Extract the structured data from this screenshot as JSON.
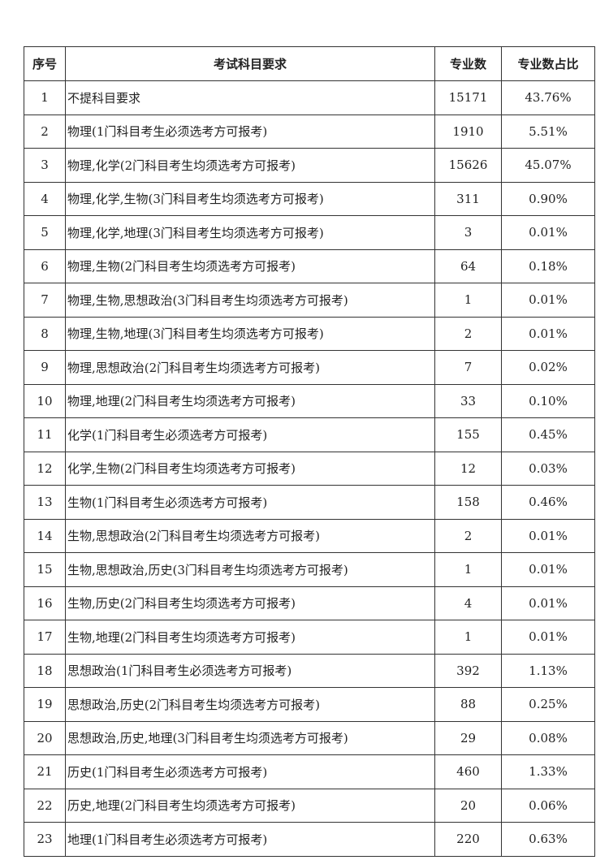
{
  "table": {
    "headers": [
      "序号",
      "考试科目要求",
      "专业数",
      "专业数占比"
    ],
    "rows": [
      [
        "1",
        "不提科目要求",
        "15171",
        "43.76%"
      ],
      [
        "2",
        "物理(1门科目考生必须选考方可报考)",
        "1910",
        "5.51%"
      ],
      [
        "3",
        "物理,化学(2门科目考生均须选考方可报考)",
        "15626",
        "45.07%"
      ],
      [
        "4",
        "物理,化学,生物(3门科目考生均须选考方可报考)",
        "311",
        "0.90%"
      ],
      [
        "5",
        "物理,化学,地理(3门科目考生均须选考方可报考)",
        "3",
        "0.01%"
      ],
      [
        "6",
        "物理,生物(2门科目考生均须选考方可报考)",
        "64",
        "0.18%"
      ],
      [
        "7",
        "物理,生物,思想政治(3门科目考生均须选考方可报考)",
        "1",
        "0.01%"
      ],
      [
        "8",
        "物理,生物,地理(3门科目考生均须选考方可报考)",
        "2",
        "0.01%"
      ],
      [
        "9",
        "物理,思想政治(2门科目考生均须选考方可报考)",
        "7",
        "0.02%"
      ],
      [
        "10",
        "物理,地理(2门科目考生均须选考方可报考)",
        "33",
        "0.10%"
      ],
      [
        "11",
        "化学(1门科目考生必须选考方可报考)",
        "155",
        "0.45%"
      ],
      [
        "12",
        "化学,生物(2门科目考生均须选考方可报考)",
        "12",
        "0.03%"
      ],
      [
        "13",
        "生物(1门科目考生必须选考方可报考)",
        "158",
        "0.46%"
      ],
      [
        "14",
        "生物,思想政治(2门科目考生均须选考方可报考)",
        "2",
        "0.01%"
      ],
      [
        "15",
        "生物,思想政治,历史(3门科目考生均须选考方可报考)",
        "1",
        "0.01%"
      ],
      [
        "16",
        "生物,历史(2门科目考生均须选考方可报考)",
        "4",
        "0.01%"
      ],
      [
        "17",
        "生物,地理(2门科目考生均须选考方可报考)",
        "1",
        "0.01%"
      ],
      [
        "18",
        "思想政治(1门科目考生必须选考方可报考)",
        "392",
        "1.13%"
      ],
      [
        "19",
        "思想政治,历史(2门科目考生均须选考方可报考)",
        "88",
        "0.25%"
      ],
      [
        "20",
        "思想政治,历史,地理(3门科目考生均须选考方可报考)",
        "29",
        "0.08%"
      ],
      [
        "21",
        "历史(1门科目考生必须选考方可报考)",
        "460",
        "1.33%"
      ],
      [
        "22",
        "历史,地理(2门科目考生均须选考方可报考)",
        "20",
        "0.06%"
      ],
      [
        "23",
        "地理(1门科目考生必须选考方可报考)",
        "220",
        "0.63%"
      ]
    ]
  }
}
